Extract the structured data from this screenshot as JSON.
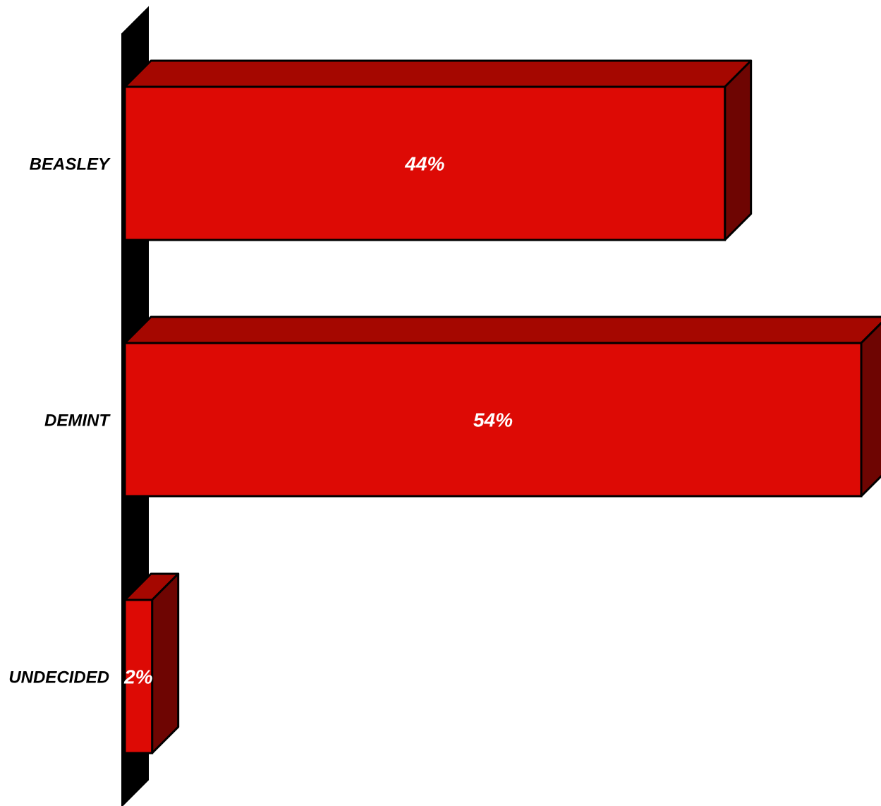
{
  "chart_data": {
    "type": "bar",
    "orientation": "horizontal",
    "style": "3d",
    "categories": [
      "BEASLEY",
      "DEMINT",
      "UNDECIDED"
    ],
    "values": [
      44,
      54,
      2
    ],
    "data_labels": [
      "44%",
      "54%",
      "2%"
    ],
    "unit": "%",
    "xlim": [
      0,
      54
    ],
    "grid": false,
    "legend": "none",
    "colors": {
      "bar_front": "#dd0a05",
      "bar_top": "#a50700",
      "bar_side": "#6e0502",
      "axis_wall": "#000000",
      "outline": "#000000",
      "data_label": "#ffffff"
    }
  }
}
